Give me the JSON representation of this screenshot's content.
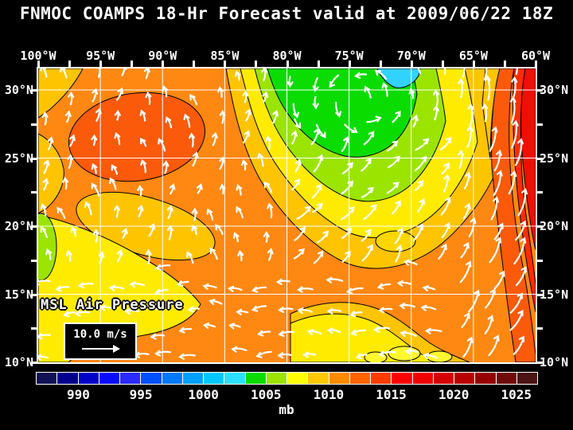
{
  "title": "FNMOC COAMPS 18-Hr Forecast valid at 2009/06/22 18Z",
  "map": {
    "overlay_label": "MSL Air Pressure",
    "wind_legend_speed": "10.0 m/s",
    "lon_labels": [
      "100°W",
      "95°W",
      "90°W",
      "85°W",
      "80°W",
      "75°W",
      "70°W",
      "65°W",
      "60°W"
    ],
    "lat_labels": [
      "30°N",
      "25°N",
      "20°N",
      "15°N",
      "10°N"
    ]
  },
  "colorbar": {
    "units": "mb",
    "tick_labels": [
      "990",
      "995",
      "1000",
      "1005",
      "1010",
      "1015",
      "1020",
      "1025"
    ],
    "cell_colors": [
      "#111155",
      "#00008C",
      "#0000C8",
      "#0A0AFF",
      "#2B2BFF",
      "#0050FF",
      "#0078FF",
      "#00A0FF",
      "#00C8FF",
      "#2BE1FF",
      "#0ADC00",
      "#9BE400",
      "#FFFF00",
      "#FFC800",
      "#FF8C00",
      "#FF6400",
      "#FF3C00",
      "#FF0000",
      "#F00000",
      "#D70000",
      "#B90000",
      "#960000",
      "#6E0A0A",
      "#4B1414"
    ]
  },
  "colors": {
    "background": "#000000",
    "text": "#FFFFFF",
    "grid": "#FFFFFF",
    "coast": "#000000",
    "arrow": "#FFFFFF",
    "orange": "#FF8812",
    "deeporange": "#FA5A0A",
    "redorange": "#FF2D00",
    "red": "#EE0F00",
    "gold": "#FFC400",
    "goldlight": "#FFD600",
    "yellow": "#FFEB00",
    "brightyellow": "#FFF82E",
    "yellowgreen": "#9BE400",
    "green": "#0ADC00",
    "cyan": "#32D2FF"
  }
}
